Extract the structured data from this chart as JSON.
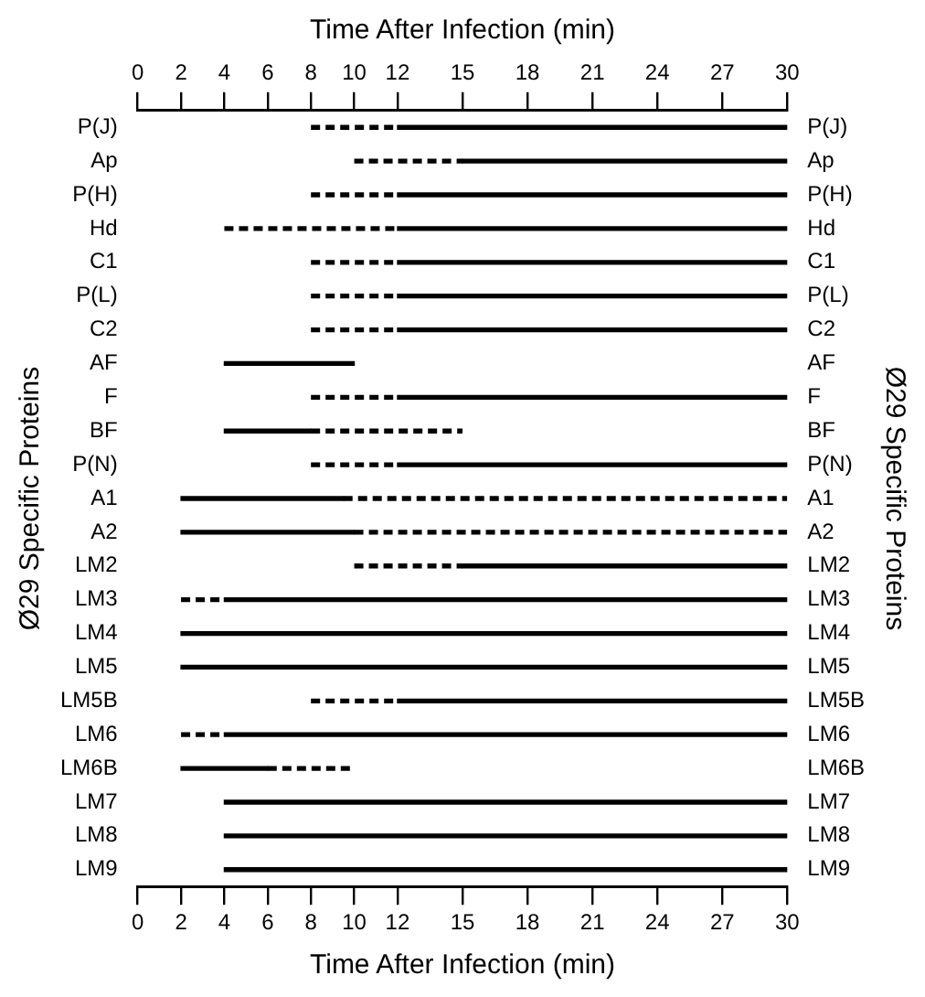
{
  "chart_data": {
    "type": "bar",
    "orientation": "horizontal",
    "xlabel": "Time After Infection (min)",
    "x2label": "Time After Infection (min)",
    "ylabel": "Ø29 Specific Proteins",
    "y2label": "Ø29 Specific Proteins",
    "categories": [
      "P(J)",
      "Ap",
      "P(H)",
      "Hd",
      "C1",
      "P(L)",
      "C2",
      "AF",
      "F",
      "BF",
      "P(N)",
      "A1",
      "A2",
      "LM2",
      "LM3",
      "LM4",
      "LM5",
      "LM5B",
      "LM6",
      "LM6B",
      "LM7",
      "LM8",
      "LM9"
    ],
    "y2_categories": [
      "P(J)",
      "Ap",
      "P(H)",
      "Hd",
      "C1",
      "P(L)",
      "C2",
      "AF",
      "F",
      "BF",
      "P(N)",
      "A1",
      "A2",
      "LM2",
      "LM3",
      "LM4",
      "LM5",
      "LM5B",
      "LM6",
      "LM6B",
      "LM7",
      "LM8",
      "LM9"
    ],
    "xlim": [
      0,
      30
    ],
    "xticks": [
      0,
      2,
      4,
      6,
      8,
      10,
      12,
      15,
      18,
      21,
      24,
      27,
      30
    ],
    "x2lim": [
      0,
      30
    ],
    "x2ticks": [
      0,
      2,
      4,
      6,
      8,
      10,
      12,
      15,
      18,
      21,
      24,
      27,
      30
    ],
    "series": [
      {
        "color": "#000000",
        "line_style": "solid",
        "base": [
          12,
          15,
          12,
          12,
          12,
          12,
          12,
          4,
          12,
          4,
          12,
          2,
          2,
          15,
          4,
          2,
          2,
          12,
          4,
          2,
          4,
          4,
          4
        ],
        "values": [
          18,
          15,
          18,
          18,
          18,
          18,
          18,
          6,
          18,
          4,
          18,
          7.5,
          8,
          15,
          26,
          28,
          28,
          18,
          26,
          4,
          26,
          26,
          26
        ]
      },
      {
        "color": "#000000",
        "line_style": "dashed",
        "base": [
          8,
          10,
          8,
          4,
          8,
          8,
          8,
          null,
          8,
          8,
          8,
          9.5,
          10,
          10,
          2,
          null,
          null,
          8,
          2,
          6,
          null,
          null,
          null
        ],
        "values": [
          4,
          5,
          4,
          8,
          4,
          4,
          4,
          null,
          4,
          7,
          4,
          20.5,
          20,
          5,
          2,
          null,
          null,
          4,
          2,
          4,
          null,
          null,
          null
        ]
      }
    ],
    "grid": false,
    "legend": false
  }
}
